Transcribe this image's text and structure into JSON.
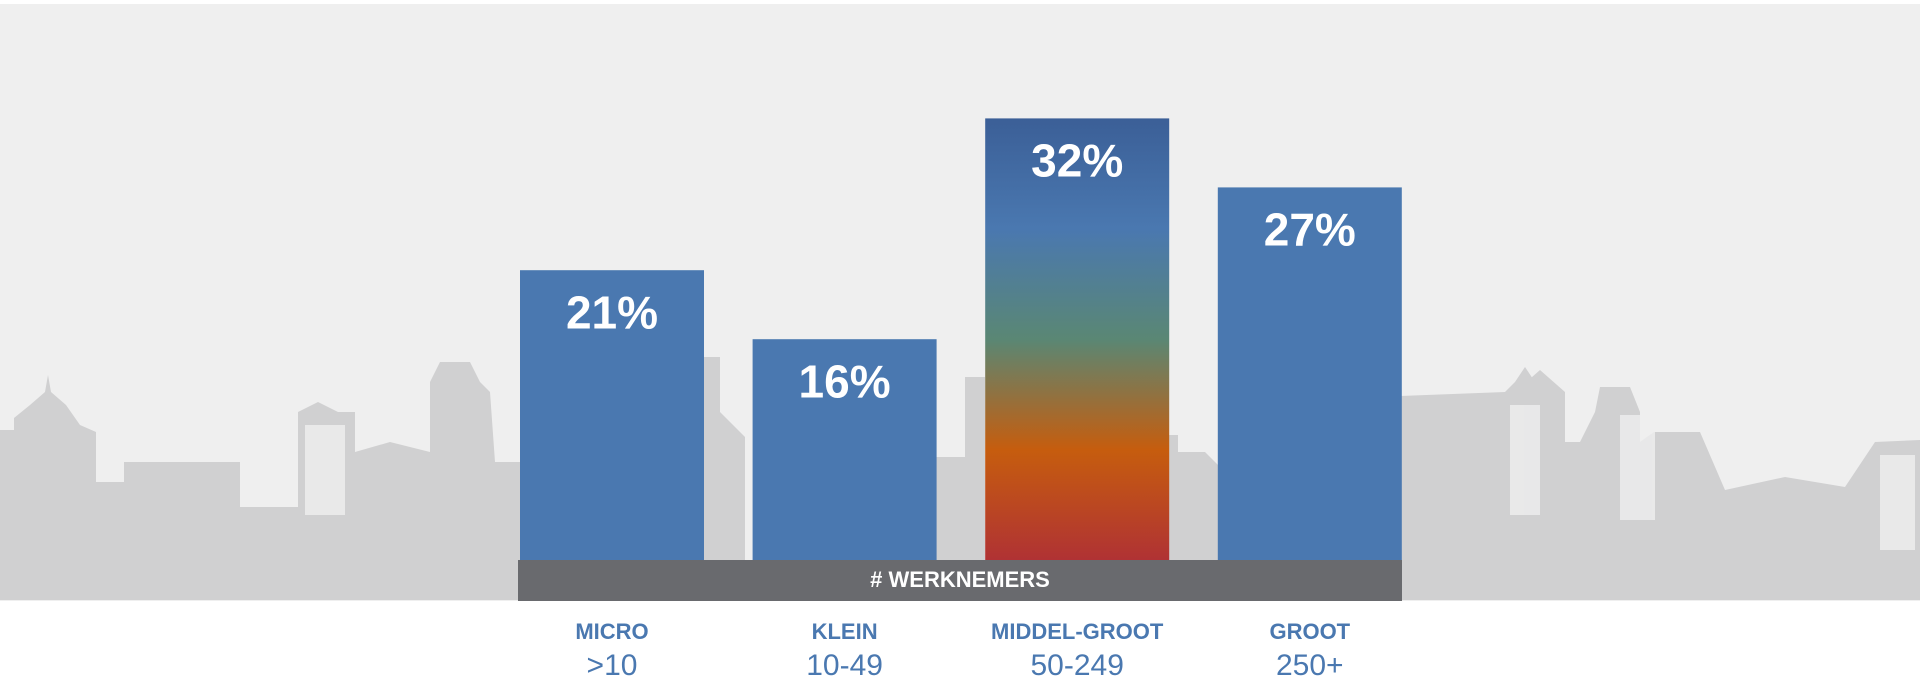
{
  "chart_data": {
    "type": "bar",
    "categories": [
      "MICRO",
      "KLEIN",
      "MIDDEL-GROOT",
      "GROOT"
    ],
    "subcategories": [
      ">10",
      "10-49",
      "50-249",
      "250+"
    ],
    "values": [
      21,
      16,
      32,
      27
    ],
    "value_labels": [
      "21%",
      "16%",
      "32%",
      "27%"
    ],
    "x_label": "# WERKNEMERS",
    "color": "#4a78b0",
    "highlight_index": 2,
    "highlight_gradient": [
      "#3b5f97",
      "#4a78b0",
      "#5a8774",
      "#c65d0e",
      "#b03234"
    ]
  }
}
